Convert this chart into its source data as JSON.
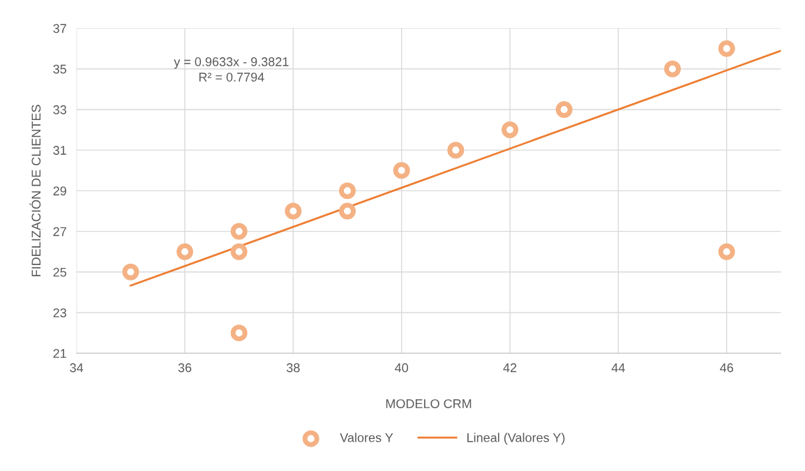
{
  "chart_data": {
    "type": "scatter",
    "xlabel": "MODELO CRM",
    "ylabel": "FIDELIZACIÓN DE CLIENTES",
    "series": [
      {
        "name": "Valores Y",
        "color": "#f4b183",
        "marker": "circle",
        "x": [
          35,
          36,
          37,
          37,
          37,
          38,
          39,
          39,
          40,
          41,
          42,
          43,
          45,
          46,
          46
        ],
        "values": [
          25,
          26,
          27,
          26,
          22,
          28,
          29,
          28,
          30,
          31,
          32,
          33,
          35,
          36,
          26
        ]
      },
      {
        "name": "Lineal (Valores Y)",
        "type": "line",
        "color": "#ed7d31",
        "marker": "none",
        "line_style": "solid",
        "x": [
          35,
          47
        ],
        "values": [
          24.33,
          35.89
        ]
      }
    ],
    "annotations": [
      "y = 0.9633x - 9.3821\nR² = 0.7794"
    ],
    "xlim": [
      34,
      47
    ],
    "xticks": [
      34,
      36,
      38,
      40,
      42,
      44,
      46
    ],
    "ylim": [
      21,
      37
    ],
    "yticks": [
      21,
      23,
      25,
      27,
      29,
      31,
      33,
      35,
      37
    ],
    "grid": true,
    "legend": "bottom"
  }
}
